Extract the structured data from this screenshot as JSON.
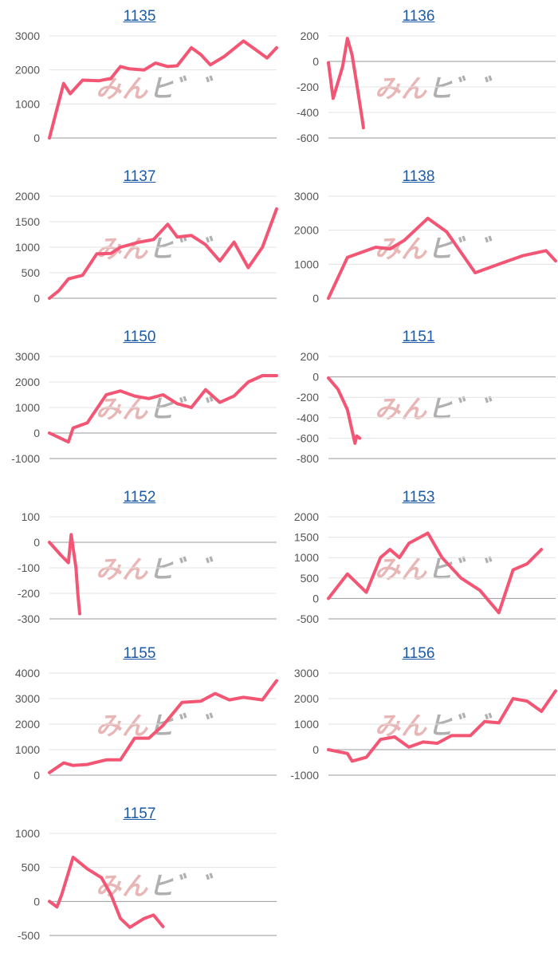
{
  "colors": {
    "line": "#f25674",
    "title": "#1a5aa8",
    "axis": "#999999",
    "grid": "#e3e3e3"
  },
  "watermark": {
    "part_a": "みん",
    "part_b": "ヒ゛゛"
  },
  "chart_data": [
    {
      "type": "line",
      "title": "1135",
      "ylim": [
        0,
        3000
      ],
      "ticks": [
        0,
        1000,
        2000,
        3000
      ],
      "grid": true,
      "xlim": [
        0,
        24
      ],
      "x": [
        0,
        1.5,
        2.2,
        3.5,
        5.2,
        6.5,
        7.5,
        8.5,
        10,
        11.2,
        12.5,
        13.5,
        15,
        16,
        17,
        18.5,
        20.5,
        21.5,
        23,
        24
      ],
      "values": [
        0,
        1600,
        1300,
        1700,
        1680,
        1750,
        2100,
        2030,
        2000,
        2200,
        2100,
        2120,
        2650,
        2450,
        2150,
        2400,
        2850,
        2650,
        2350,
        2650
      ]
    },
    {
      "type": "line",
      "title": "1136",
      "ylim": [
        -600,
        200
      ],
      "ticks": [
        -600,
        -400,
        -200,
        0,
        200
      ],
      "grid": true,
      "xlim": [
        0,
        24
      ],
      "x": [
        0,
        0.5,
        1.5,
        2,
        2.5,
        3,
        3.5,
        3.7
      ],
      "values": [
        -10,
        -290,
        -40,
        180,
        50,
        -180,
        -420,
        -520
      ]
    },
    {
      "type": "line",
      "title": "1137",
      "ylim": [
        0,
        2000
      ],
      "ticks": [
        0,
        500,
        1000,
        1500,
        2000
      ],
      "grid": true,
      "xlim": [
        0,
        24
      ],
      "x": [
        0,
        1,
        2,
        3.5,
        5,
        6.5,
        7.5,
        9.5,
        11,
        12.5,
        13.5,
        15,
        16.5,
        18,
        19.5,
        21,
        22.5,
        24
      ],
      "values": [
        0,
        150,
        380,
        450,
        870,
        880,
        1000,
        1100,
        1150,
        1450,
        1200,
        1230,
        1050,
        730,
        1100,
        600,
        1000,
        1750
      ]
    },
    {
      "type": "line",
      "title": "1138",
      "ylim": [
        0,
        3000
      ],
      "ticks": [
        0,
        1000,
        2000,
        3000
      ],
      "grid": true,
      "xlim": [
        0,
        24
      ],
      "x": [
        0,
        2,
        4,
        5,
        6.5,
        8,
        10.5,
        12.5,
        15.5,
        18,
        20.5,
        23,
        24
      ],
      "values": [
        0,
        1200,
        1400,
        1500,
        1450,
        1700,
        2350,
        1950,
        750,
        1000,
        1250,
        1400,
        1100
      ]
    },
    {
      "type": "line",
      "title": "1150",
      "ylim": [
        -1000,
        3000
      ],
      "ticks": [
        -1000,
        0,
        1000,
        2000,
        3000
      ],
      "grid": true,
      "xlim": [
        0,
        24
      ],
      "x": [
        0,
        2,
        2.5,
        4,
        6,
        7.5,
        9,
        10.5,
        12,
        13.5,
        15,
        16.5,
        18,
        19.5,
        21,
        22.5,
        24
      ],
      "values": [
        0,
        -350,
        200,
        400,
        1500,
        1650,
        1450,
        1350,
        1500,
        1150,
        1000,
        1700,
        1200,
        1450,
        2000,
        2250,
        2250
      ]
    },
    {
      "type": "line",
      "title": "1151",
      "ylim": [
        -800,
        200
      ],
      "ticks": [
        -800,
        -600,
        -400,
        -200,
        0,
        200
      ],
      "grid": true,
      "xlim": [
        0,
        24
      ],
      "x": [
        0,
        1,
        2,
        2.8,
        3,
        3.3
      ],
      "values": [
        -10,
        -120,
        -320,
        -650,
        -580,
        -600
      ]
    },
    {
      "type": "line",
      "title": "1152",
      "ylim": [
        -300,
        100
      ],
      "ticks": [
        -300,
        -200,
        -100,
        0,
        100
      ],
      "grid": true,
      "xlim": [
        0,
        24
      ],
      "x": [
        0,
        1.2,
        2,
        2.3,
        2.8,
        3,
        3.2
      ],
      "values": [
        0,
        -50,
        -80,
        30,
        -100,
        -200,
        -280
      ]
    },
    {
      "type": "line",
      "title": "1153",
      "ylim": [
        -500,
        2000
      ],
      "ticks": [
        -500,
        0,
        500,
        1000,
        1500,
        2000
      ],
      "grid": true,
      "xlim": [
        0,
        24
      ],
      "x": [
        0,
        2,
        4,
        5.5,
        6.5,
        7.5,
        8.5,
        10.5,
        12,
        14,
        16,
        18,
        19.5,
        21,
        22.5
      ],
      "values": [
        0,
        600,
        150,
        1000,
        1200,
        1000,
        1350,
        1600,
        1000,
        500,
        200,
        -350,
        700,
        850,
        1200
      ]
    },
    {
      "type": "line",
      "title": "1155",
      "ylim": [
        0,
        4000
      ],
      "ticks": [
        0,
        1000,
        2000,
        3000,
        4000
      ],
      "grid": true,
      "xlim": [
        0,
        24
      ],
      "x": [
        0,
        1.5,
        2.5,
        4,
        6,
        7.5,
        9,
        10.5,
        12,
        14,
        16,
        17.5,
        19,
        20.5,
        22.5,
        24
      ],
      "values": [
        100,
        480,
        380,
        420,
        600,
        600,
        1450,
        1450,
        1950,
        2850,
        2900,
        3200,
        2950,
        3050,
        2950,
        3700
      ]
    },
    {
      "type": "line",
      "title": "1156",
      "ylim": [
        -1000,
        3000
      ],
      "ticks": [
        -1000,
        0,
        1000,
        2000,
        3000
      ],
      "grid": true,
      "xlim": [
        0,
        24
      ],
      "x": [
        0,
        2,
        2.5,
        4,
        5.5,
        7,
        8.5,
        10,
        11.5,
        13,
        15,
        16.5,
        18,
        19.5,
        21,
        22.5,
        24
      ],
      "values": [
        0,
        -150,
        -450,
        -300,
        400,
        500,
        100,
        300,
        250,
        550,
        550,
        1100,
        1050,
        2000,
        1900,
        1500,
        2300
      ]
    },
    {
      "type": "line",
      "title": "1157",
      "ylim": [
        -500,
        1000
      ],
      "ticks": [
        -500,
        0,
        500,
        1000
      ],
      "grid": true,
      "xlim": [
        0,
        24
      ],
      "x": [
        0,
        0.8,
        1.3,
        2.5,
        4,
        5.5,
        6.5,
        7.5,
        8.5,
        10,
        11,
        12
      ],
      "values": [
        0,
        -80,
        100,
        650,
        480,
        350,
        100,
        -250,
        -380,
        -250,
        -200,
        -370
      ]
    }
  ]
}
